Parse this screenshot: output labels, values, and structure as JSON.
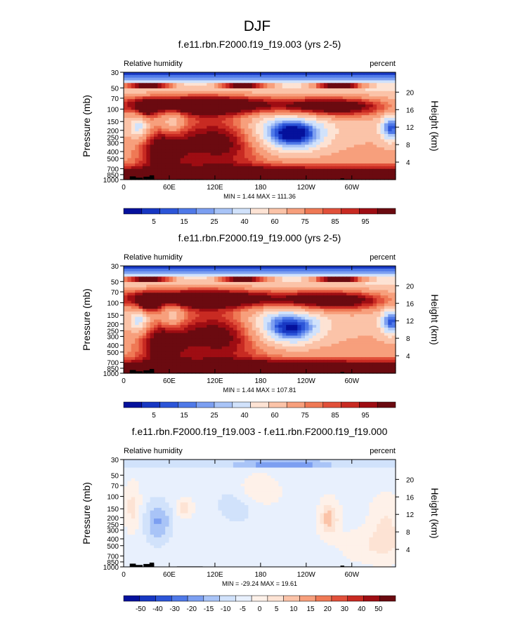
{
  "main_title": "DJF",
  "colors": {
    "positive_scale": [
      "#05119c",
      "#1737c2",
      "#2c55d8",
      "#4f79e8",
      "#7c9ff1",
      "#a9c4f7",
      "#d1e2fb",
      "#fde3d4",
      "#fbc3a8",
      "#f79f7c",
      "#ef7955",
      "#e1503a",
      "#c82a22",
      "#9e0d13",
      "#6b0a10"
    ],
    "diff_scale": [
      "#05119c",
      "#1737c2",
      "#2c55d8",
      "#4f79e8",
      "#7c9ff1",
      "#a9c4f7",
      "#d1e2fb",
      "#e8f0fd",
      "#fef1e9",
      "#fde3d4",
      "#fbc3a8",
      "#f79f7c",
      "#ef7955",
      "#e1503a",
      "#c82a22",
      "#9e0d13",
      "#6b0a10"
    ],
    "terrain": "#000000"
  },
  "chart_data": [
    {
      "type": "heatmap",
      "title": "f.e11.rbn.F2000.f19_f19.003 (yrs 2-5)",
      "left_label": "Relative humidity",
      "right_label": "percent",
      "ylabel": "Pressure (mb)",
      "ylabel_right": "Height (km)",
      "x_ticks": [
        "0",
        "60E",
        "120E",
        "180",
        "120W",
        "60W"
      ],
      "x_tick_values": [
        0,
        60,
        120,
        180,
        240,
        300
      ],
      "xlim": [
        0,
        357.5
      ],
      "y_ticks": [
        "30",
        "50",
        "70",
        "100",
        "150",
        "200",
        "250",
        "300",
        "400",
        "500",
        "700",
        "850",
        "1000"
      ],
      "y_tick_values": [
        30,
        50,
        70,
        100,
        150,
        200,
        250,
        300,
        400,
        500,
        700,
        850,
        1000
      ],
      "ylim": [
        1000,
        30
      ],
      "height_ticks": [
        "20",
        "16",
        "12",
        "8",
        "4"
      ],
      "height_tick_values": [
        20,
        16,
        12,
        8,
        4
      ],
      "stats": "MIN =   1.44  MAX = 111.36",
      "colorbar_labels": [
        "5",
        "15",
        "25",
        "40",
        "60",
        "75",
        "85",
        "95"
      ],
      "scale": "positive"
    },
    {
      "type": "heatmap",
      "title": "f.e11.rbn.F2000.f19_f19.000 (yrs 2-5)",
      "left_label": "Relative humidity",
      "right_label": "percent",
      "ylabel": "Pressure (mb)",
      "ylabel_right": "Height (km)",
      "x_ticks": [
        "0",
        "60E",
        "120E",
        "180",
        "120W",
        "60W"
      ],
      "x_tick_values": [
        0,
        60,
        120,
        180,
        240,
        300
      ],
      "xlim": [
        0,
        357.5
      ],
      "y_ticks": [
        "30",
        "50",
        "70",
        "100",
        "150",
        "200",
        "250",
        "300",
        "400",
        "500",
        "700",
        "850",
        "1000"
      ],
      "y_tick_values": [
        30,
        50,
        70,
        100,
        150,
        200,
        250,
        300,
        400,
        500,
        700,
        850,
        1000
      ],
      "ylim": [
        1000,
        30
      ],
      "height_ticks": [
        "20",
        "16",
        "12",
        "8",
        "4"
      ],
      "height_tick_values": [
        20,
        16,
        12,
        8,
        4
      ],
      "stats": "MIN =   1.44  MAX = 107.81",
      "colorbar_labels": [
        "5",
        "15",
        "25",
        "40",
        "60",
        "75",
        "85",
        "95"
      ],
      "scale": "positive"
    },
    {
      "type": "heatmap",
      "title": "f.e11.rbn.F2000.f19_f19.003 - f.e11.rbn.F2000.f19_f19.000",
      "left_label": "Relative humidity",
      "right_label": "percent",
      "ylabel": "Pressure (mb)",
      "ylabel_right": "Height (km)",
      "x_ticks": [
        "0",
        "60E",
        "120E",
        "180",
        "120W",
        "60W"
      ],
      "x_tick_values": [
        0,
        60,
        120,
        180,
        240,
        300
      ],
      "xlim": [
        0,
        357.5
      ],
      "y_ticks": [
        "30",
        "50",
        "70",
        "100",
        "150",
        "200",
        "250",
        "300",
        "400",
        "500",
        "700",
        "850",
        "1000"
      ],
      "y_tick_values": [
        30,
        50,
        70,
        100,
        150,
        200,
        250,
        300,
        400,
        500,
        700,
        850,
        1000
      ],
      "ylim": [
        1000,
        30
      ],
      "height_ticks": [
        "20",
        "16",
        "12",
        "8",
        "4"
      ],
      "height_tick_values": [
        20,
        16,
        12,
        8,
        4
      ],
      "stats": "MIN = -29.24  MAX =  19.61",
      "colorbar_labels": [
        "-50",
        "-40",
        "-30",
        "-20",
        "-15",
        "-10",
        "-5",
        "0",
        "5",
        "10",
        "15",
        "20",
        "30",
        "40",
        "50"
      ],
      "scale": "diff"
    }
  ]
}
